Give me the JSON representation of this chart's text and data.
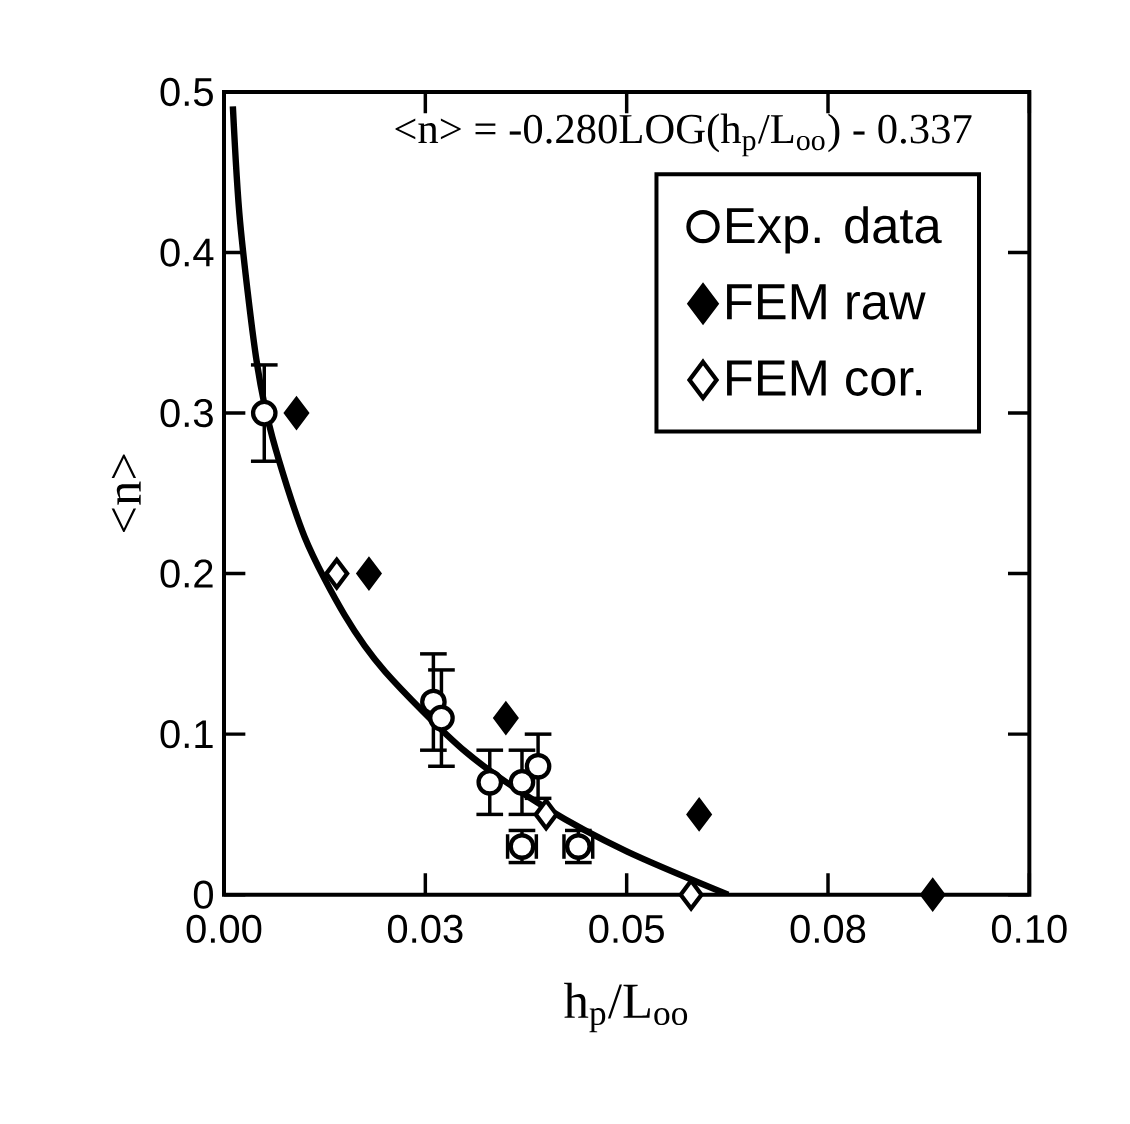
{
  "chart_data": {
    "type": "scatter",
    "xlabel": "h$_{p}$/L$_{oo}$",
    "ylabel": "<n>",
    "annotations": [
      "<n> = -0.280LOG(h$_{p}$/L$_{oo}$) - 0.337"
    ],
    "xlim": [
      0,
      0.1
    ],
    "ylim": [
      0,
      0.5
    ],
    "xticks": [
      {
        "value": 0,
        "label": "0.00"
      },
      {
        "value": 0.025,
        "label": "0.03"
      },
      {
        "value": 0.05,
        "label": "0.05"
      },
      {
        "value": 0.075,
        "label": "0.08"
      },
      {
        "value": 0.1,
        "label": "0.10"
      }
    ],
    "yticks": [
      0,
      0.1,
      0.2,
      0.3,
      0.4,
      0.5
    ],
    "grid": false,
    "legend": "top right",
    "series": [
      {
        "name": "Exp. data",
        "color": "#000000",
        "marker": "circle",
        "x": [
          0.005,
          0.026,
          0.027,
          0.033,
          0.037,
          0.039,
          0.037,
          0.044
        ],
        "values": [
          0.3,
          0.12,
          0.11,
          0.07,
          0.07,
          0.08,
          0.03,
          0.03
        ],
        "errors": [
          0.03,
          0.03,
          0.03,
          0.02,
          0.02,
          0.02,
          0.01,
          0.01
        ],
        "xerrors": [
          null,
          null,
          null,
          null,
          null,
          null,
          0.002,
          0.002
        ]
      },
      {
        "name": "FEM raw",
        "color": "#000000",
        "marker": "diamond",
        "x": [
          0.009,
          0.018,
          0.035,
          0.059,
          0.088
        ],
        "values": [
          0.3,
          0.2,
          0.11,
          0.05,
          0
        ]
      },
      {
        "name": "FEM cor.",
        "color": "#ffffff",
        "marker": "diamond",
        "x": [
          0.014,
          0.04,
          0.058
        ],
        "values": [
          0.2,
          0.05,
          0
        ]
      },
      {
        "type": "line",
        "color": "#000000",
        "marker": "none",
        "line_style": "solid",
        "x": [
          0.0011,
          0.002,
          0.004,
          0.006,
          0.01,
          0.015,
          0.02,
          0.03,
          0.04,
          0.05,
          0.0626
        ],
        "values": [
          0.491,
          0.419,
          0.334,
          0.285,
          0.223,
          0.174,
          0.139,
          0.089,
          0.054,
          0.027,
          0
        ]
      }
    ]
  }
}
